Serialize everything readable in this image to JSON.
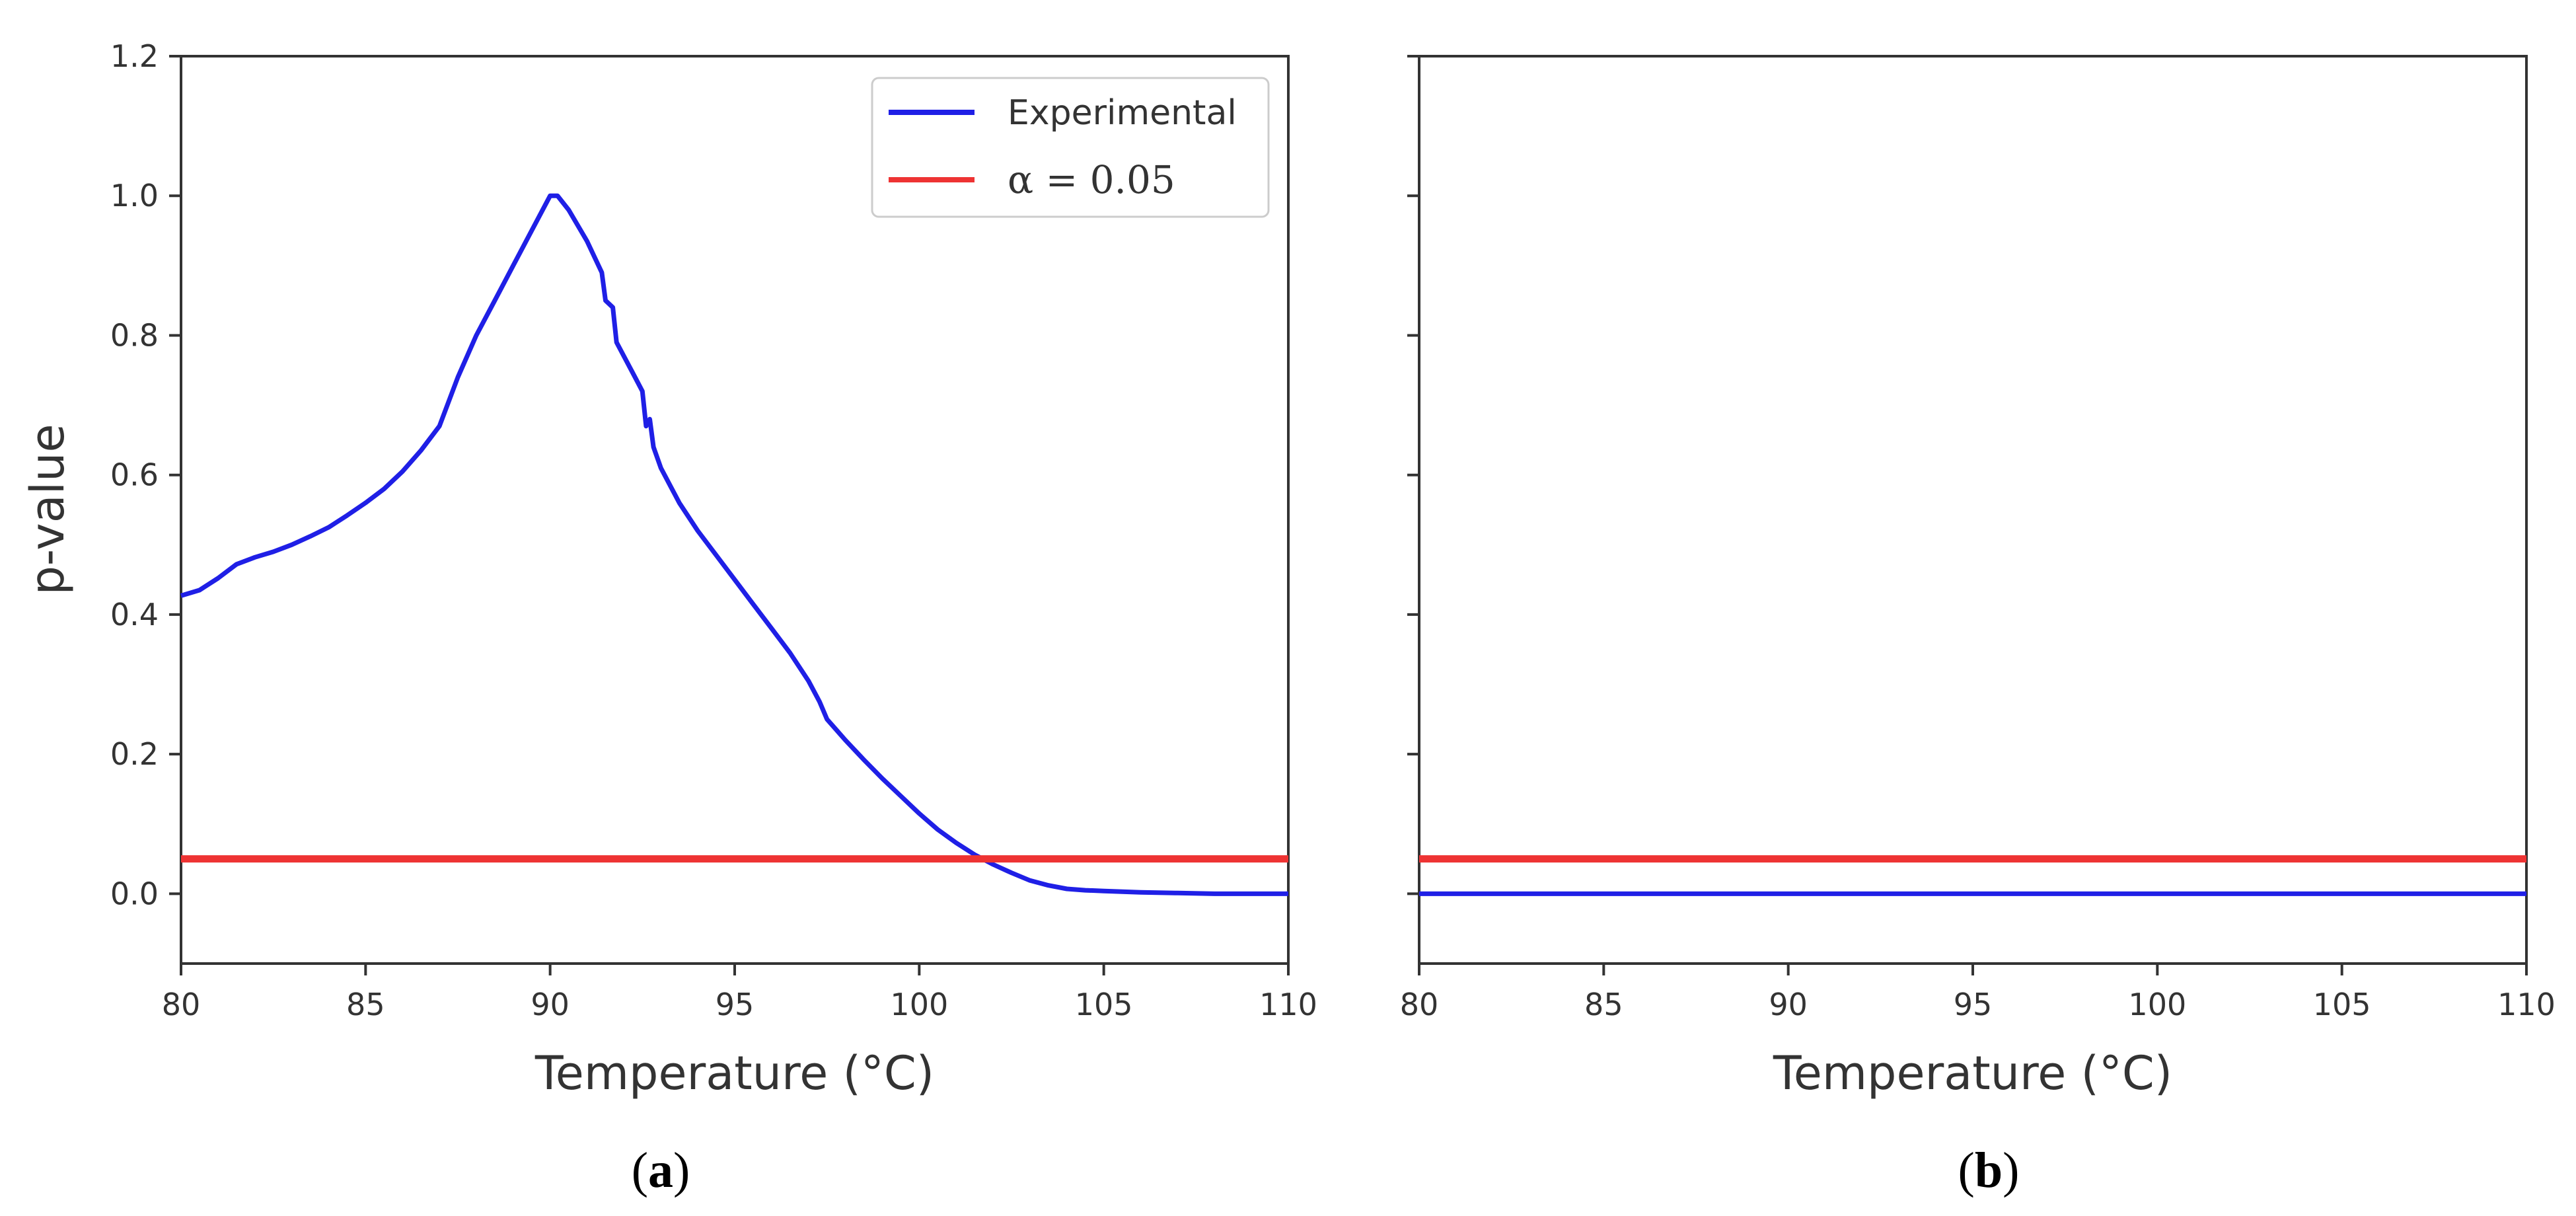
{
  "colors": {
    "experimental": "#1f1fe6",
    "alpha_line": "#ee3333",
    "axes": "#333333"
  },
  "chart_data": [
    {
      "type": "line",
      "panel": "a",
      "caption": {
        "open": "(",
        "letter": "a",
        "close": ")"
      },
      "xlabel": "Temperature (°C)",
      "ylabel": "p-value",
      "xlim": [
        80,
        110
      ],
      "ylim": [
        -0.1,
        1.2
      ],
      "xticks": [
        "80",
        "85",
        "90",
        "95",
        "100",
        "105",
        "110"
      ],
      "yticks": [
        "0.0",
        "0.2",
        "0.4",
        "0.6",
        "0.8",
        "1.0",
        "1.2"
      ],
      "legend": {
        "position": "upper-right",
        "entries": [
          {
            "label": "Experimental",
            "series": "experimental"
          },
          {
            "label": "α = 0.05",
            "series": "alpha"
          }
        ]
      },
      "series": [
        {
          "name": "Experimental",
          "color_key": "experimental",
          "x": [
            80,
            80.5,
            81,
            81.5,
            82,
            82.5,
            83,
            83.5,
            84,
            84.5,
            85,
            85.5,
            86,
            86.5,
            87,
            87.5,
            88,
            88.5,
            89,
            89.5,
            90,
            90.2,
            90.5,
            91,
            91.4,
            91.5,
            91.7,
            91.8,
            92,
            92.3,
            92.5,
            92.6,
            92.7,
            92.8,
            93,
            93.5,
            94,
            94.5,
            95,
            95.5,
            96,
            96.5,
            97,
            97.3,
            97.5,
            98,
            98.5,
            99,
            99.5,
            100,
            100.5,
            101,
            101.5,
            102,
            102.5,
            103,
            103.5,
            104,
            104.5,
            105,
            106,
            107,
            108,
            109,
            110
          ],
          "y": [
            0.427,
            0.435,
            0.452,
            0.472,
            0.482,
            0.49,
            0.5,
            0.512,
            0.525,
            0.542,
            0.56,
            0.58,
            0.605,
            0.635,
            0.67,
            0.74,
            0.8,
            0.85,
            0.9,
            0.95,
            1.0,
            1.0,
            0.98,
            0.935,
            0.89,
            0.85,
            0.84,
            0.79,
            0.77,
            0.74,
            0.72,
            0.67,
            0.68,
            0.64,
            0.61,
            0.56,
            0.52,
            0.485,
            0.45,
            0.415,
            0.38,
            0.345,
            0.305,
            0.275,
            0.25,
            0.22,
            0.192,
            0.165,
            0.14,
            0.115,
            0.092,
            0.073,
            0.056,
            0.042,
            0.03,
            0.019,
            0.012,
            0.007,
            0.005,
            0.004,
            0.002,
            0.001,
            0.0,
            0.0,
            0.0
          ]
        },
        {
          "name": "α = 0.05",
          "color_key": "alpha_line",
          "x": [
            80,
            110
          ],
          "y": [
            0.05,
            0.05
          ]
        }
      ]
    },
    {
      "type": "line",
      "panel": "b",
      "caption": {
        "open": "(",
        "letter": "b",
        "close": ")"
      },
      "xlabel": "Temperature (°C)",
      "ylabel": "",
      "xlim": [
        80,
        110
      ],
      "ylim": [
        -0.1,
        1.2
      ],
      "xticks": [
        "80",
        "85",
        "90",
        "95",
        "100",
        "105",
        "110"
      ],
      "yticks": [
        "",
        "",
        "",
        "",
        "",
        "",
        ""
      ],
      "series": [
        {
          "name": "Experimental",
          "color_key": "experimental",
          "x": [
            80,
            110
          ],
          "y": [
            0.0,
            0.0
          ]
        },
        {
          "name": "α = 0.05",
          "color_key": "alpha_line",
          "x": [
            80,
            110
          ],
          "y": [
            0.05,
            0.05
          ]
        }
      ]
    }
  ]
}
